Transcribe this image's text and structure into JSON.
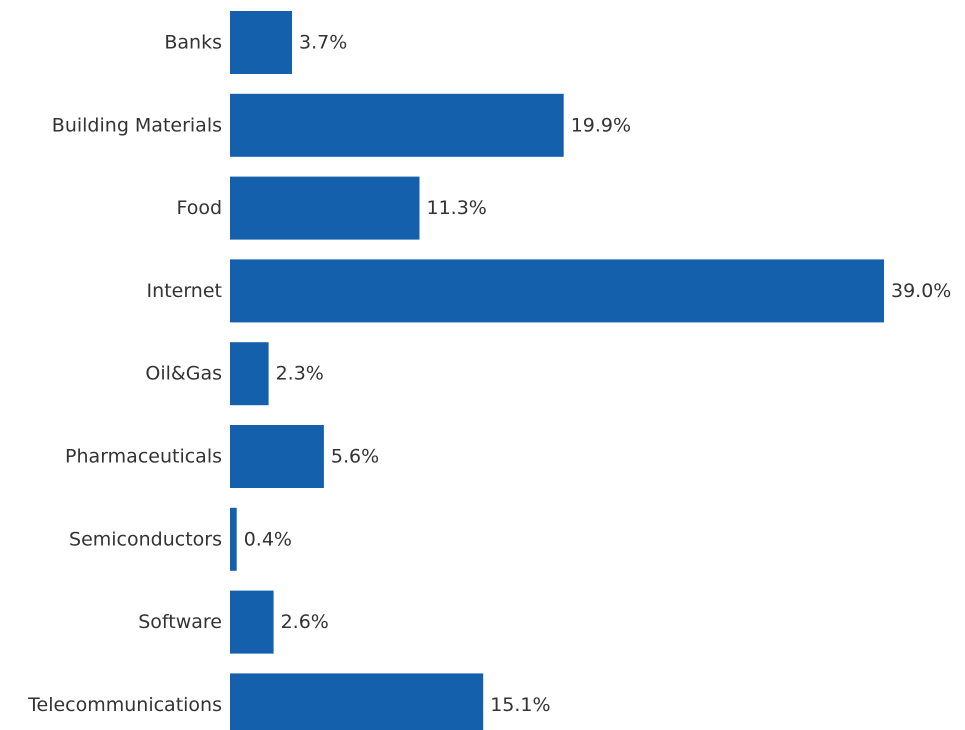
{
  "chart_data": {
    "type": "bar",
    "orientation": "horizontal",
    "categories": [
      "Banks",
      "Building Materials",
      "Food",
      "Internet",
      "Oil&Gas",
      "Pharmaceuticals",
      "Semiconductors",
      "Software",
      "Telecommunications"
    ],
    "values": [
      3.7,
      19.9,
      11.3,
      39.0,
      2.3,
      5.6,
      0.4,
      2.6,
      15.1
    ],
    "value_labels": [
      "3.7%",
      "19.9%",
      "11.3%",
      "39.0%",
      "2.3%",
      "5.6%",
      "0.4%",
      "2.6%",
      "15.1%"
    ],
    "title": "",
    "xlabel": "",
    "ylabel": "",
    "xlim": [
      0,
      39.0
    ],
    "grid": false,
    "bar_color": "#1560AC"
  }
}
